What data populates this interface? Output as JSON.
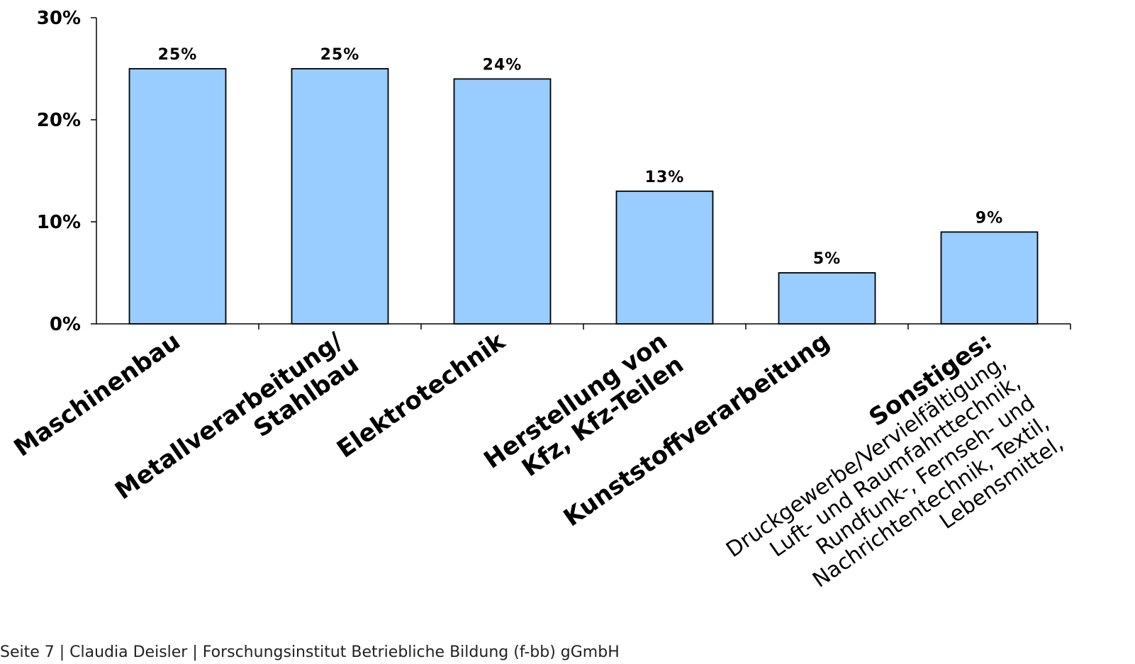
{
  "chart_data": {
    "type": "bar",
    "categories": [
      "Maschinenbau",
      "Metallverarbeitung/ Stahlbau",
      "Elektrotechnik",
      "Herstellung von Kfz, Kfz-Teilen",
      "Kunststoffverarbeitung",
      "Sonstiges: Druckgewerbe/Vervielfältigung, Luft- und Raumfahrttechnik, Rundfunk-, Fernseh- und Nachrichtentechnik, Textil, Lebensmittel,"
    ],
    "category_lines": [
      [
        "Maschinenbau"
      ],
      [
        "Metallverarbeitung/",
        "Stahlbau"
      ],
      [
        "Elektrotechnik"
      ],
      [
        "Herstellung von",
        "Kfz, Kfz-Teilen"
      ],
      [
        "Kunststoffverarbeitung"
      ],
      [
        "Sonstiges:",
        "Druckgewerbe/Vervielfältigung,",
        "Luft- und Raumfahrttechnik,",
        "Rundfunk-, Fernseh- und",
        "Nachrichtentechnik, Textil,",
        "Lebensmittel,"
      ]
    ],
    "values": [
      25,
      25,
      24,
      13,
      5,
      9
    ],
    "data_labels": [
      "25%",
      "25%",
      "24%",
      "13%",
      "5%",
      "9%"
    ],
    "yticks": [
      0,
      10,
      20,
      30
    ],
    "ytick_labels": [
      "0%",
      "10%",
      "20%",
      "30%"
    ],
    "ylim": [
      0,
      30
    ],
    "bar_color": "#99ccff",
    "bar_edge_color": "#000000",
    "grid": false
  },
  "footer": {
    "text": "Seite 7 | Claudia Deisler | Forschungsinstitut Betriebliche Bildung (f-bb) gGmbH"
  }
}
